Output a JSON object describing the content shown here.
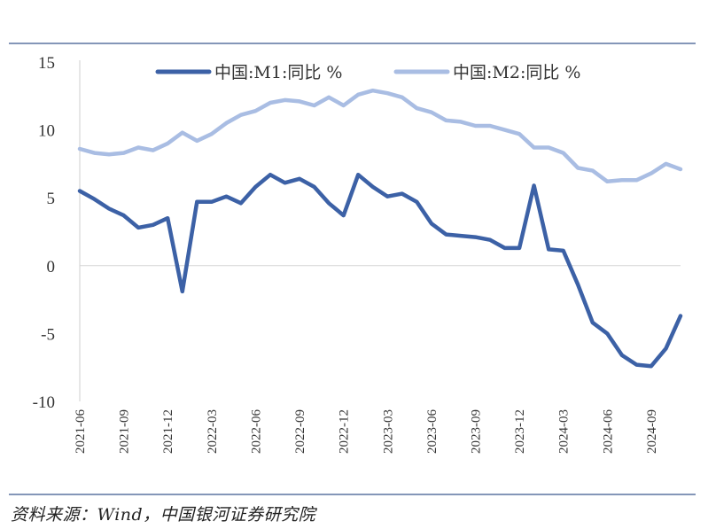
{
  "chart_data": {
    "type": "line",
    "x": [
      "2021-06",
      "2021-07",
      "2021-08",
      "2021-09",
      "2021-10",
      "2021-11",
      "2021-12",
      "2022-01",
      "2022-02",
      "2022-03",
      "2022-04",
      "2022-05",
      "2022-06",
      "2022-07",
      "2022-08",
      "2022-09",
      "2022-10",
      "2022-11",
      "2022-12",
      "2023-01",
      "2023-02",
      "2023-03",
      "2023-04",
      "2023-05",
      "2023-06",
      "2023-07",
      "2023-08",
      "2023-09",
      "2023-10",
      "2023-11",
      "2023-12",
      "2024-01",
      "2024-02",
      "2024-03",
      "2024-04",
      "2024-05",
      "2024-06",
      "2024-07",
      "2024-08",
      "2024-09",
      "2024-10",
      "2024-11"
    ],
    "tick_labels": [
      "2021-06",
      "2021-09",
      "2021-12",
      "2022-03",
      "2022-06",
      "2022-09",
      "2022-12",
      "2023-03",
      "2023-06",
      "2023-09",
      "2023-12",
      "2024-03",
      "2024-06",
      "2024-09"
    ],
    "series": [
      {
        "name": "中国:M1:同比 %",
        "color": "#3c61a6",
        "values": [
          5.5,
          4.9,
          4.2,
          3.7,
          2.8,
          3.0,
          3.5,
          -1.9,
          4.7,
          4.7,
          5.1,
          4.6,
          5.8,
          6.7,
          6.1,
          6.4,
          5.8,
          4.6,
          3.7,
          6.7,
          5.8,
          5.1,
          5.3,
          4.7,
          3.1,
          2.3,
          2.2,
          2.1,
          1.9,
          1.3,
          1.3,
          5.9,
          1.2,
          1.1,
          -1.4,
          -4.2,
          -5.0,
          -6.6,
          -7.3,
          -7.4,
          -6.1,
          -3.7
        ]
      },
      {
        "name": "中国:M2:同比 %",
        "color": "#a9bde3",
        "values": [
          8.6,
          8.3,
          8.2,
          8.3,
          8.7,
          8.5,
          9.0,
          9.8,
          9.2,
          9.7,
          10.5,
          11.1,
          11.4,
          12.0,
          12.2,
          12.1,
          11.8,
          12.4,
          11.8,
          12.6,
          12.9,
          12.7,
          12.4,
          11.6,
          11.3,
          10.7,
          10.6,
          10.3,
          10.3,
          10.0,
          9.7,
          8.7,
          8.7,
          8.3,
          7.2,
          7.0,
          6.2,
          6.3,
          6.3,
          6.8,
          7.5,
          7.1
        ]
      }
    ],
    "ylim": [
      -10,
      15
    ],
    "yticks": [
      "15",
      "10",
      "5",
      "0",
      "-5",
      "-10"
    ],
    "grid": "zero line only",
    "legend_position": "top"
  },
  "source_text": "资料来源：Wind，中国银河证券研究院"
}
